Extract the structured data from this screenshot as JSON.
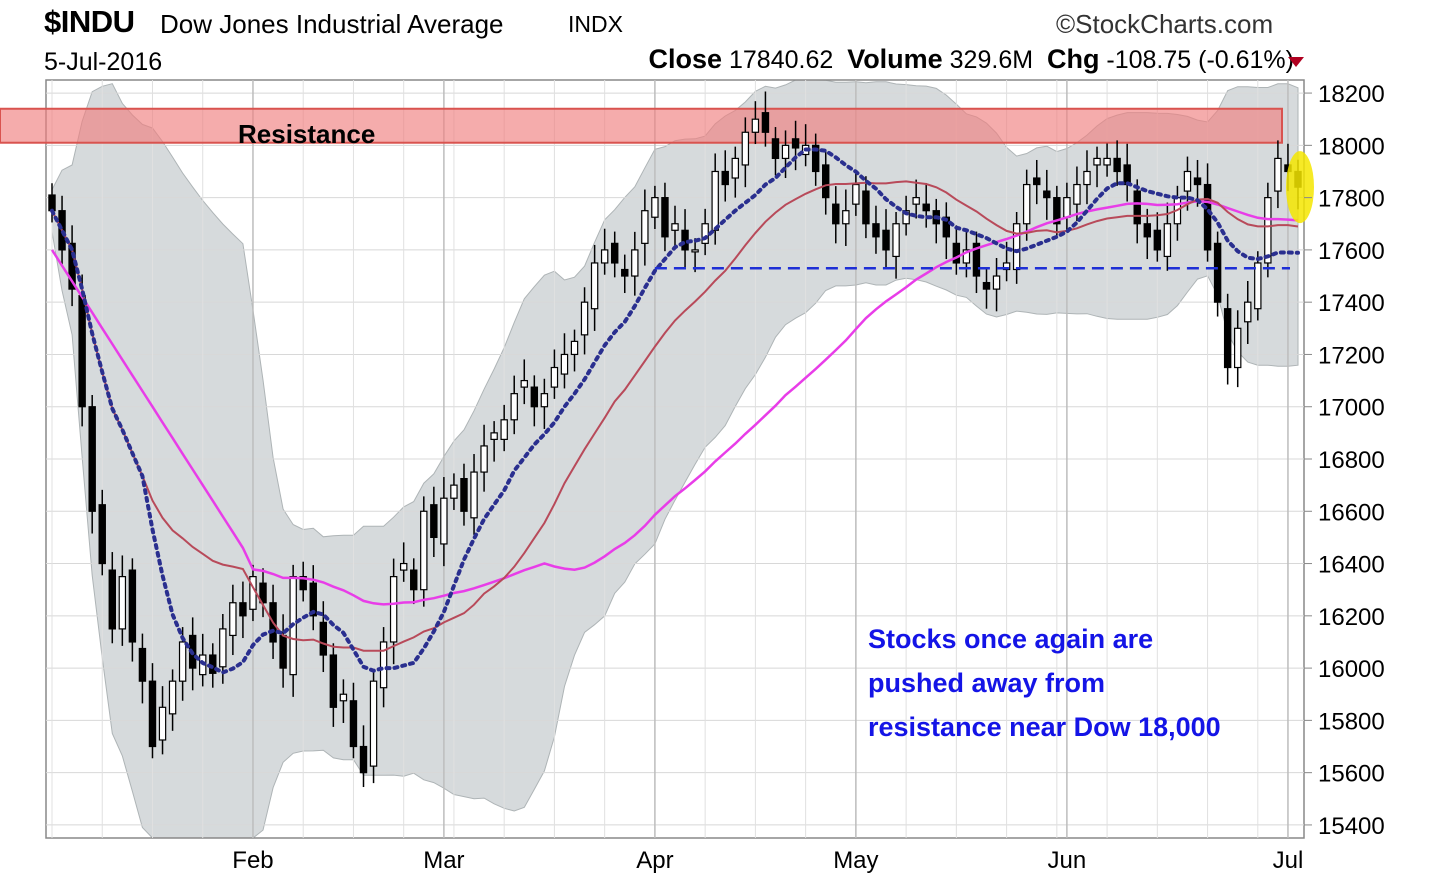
{
  "header": {
    "symbol": "$INDU",
    "name": "Dow Jones Industrial Average",
    "exchange": "INDX",
    "brand": "©StockCharts.com",
    "date": "5-Jul-2016",
    "close_label": "Close",
    "close_value": "17840.62",
    "volume_label": "Volume",
    "volume_value": "329.6M",
    "chg_label": "Chg",
    "chg_value": "-108.75 (-0.61%)"
  },
  "chart_data": {
    "type": "candlestick",
    "title": "$INDU Dow Jones Industrial Average INDX",
    "ylim": [
      15350,
      18250
    ],
    "yticks": [
      15400,
      15600,
      15800,
      16000,
      16200,
      16400,
      16600,
      16800,
      17000,
      17200,
      17400,
      17600,
      17800,
      18000,
      18200
    ],
    "x_start_index": 0,
    "x_end_index": 124,
    "x_month_labels": [
      {
        "label": "Feb",
        "index": 20
      },
      {
        "label": "Mar",
        "index": 39
      },
      {
        "label": "Apr",
        "index": 60
      },
      {
        "label": "May",
        "index": 80
      },
      {
        "label": "Jun",
        "index": 101
      },
      {
        "label": "Jul",
        "index": 123
      }
    ],
    "grid": true,
    "y_axis_side": "right",
    "resistance_band": {
      "low": 18010,
      "high": 18140,
      "label": "Resistance",
      "color": "#f08080"
    },
    "support_line": {
      "value": 17530,
      "from_index": 60,
      "to_index": 124,
      "color": "#1e2fd6"
    },
    "annotation": {
      "lines": [
        "Stocks once again are",
        "pushed away from",
        "resistance near Dow 18,000"
      ],
      "color": "#1414e6",
      "position": "bottom-right"
    },
    "highlight": {
      "index": 124,
      "value": 17840,
      "color": "#f5e600"
    },
    "ohlc_ends": [
      17750,
      17600,
      17450,
      17000,
      16600,
      16400,
      16150,
      16350,
      16100,
      15950,
      15700,
      15850,
      15950,
      16100,
      16000,
      16050,
      15980,
      16150,
      16250,
      16200,
      16350,
      16250,
      16100,
      16000,
      16350,
      16300,
      16200,
      16050,
      15850,
      15900,
      15700,
      15600,
      15950,
      16100,
      16350,
      16400,
      16300,
      16600,
      16500,
      16650,
      16700,
      16600,
      16750,
      16850,
      16900,
      16950,
      17050,
      17100,
      17000,
      17050,
      17150,
      17200,
      17250,
      17400,
      17550,
      17600,
      17550,
      17500,
      17600,
      17750,
      17800,
      17650,
      17700,
      17600,
      17600,
      17700,
      17900,
      17850,
      17950,
      18050,
      18100,
      18050,
      17950,
      18000,
      17990,
      18000,
      17900,
      17800,
      17700,
      17750,
      17850,
      17700,
      17650,
      17600,
      17700,
      17750,
      17800,
      17750,
      17700,
      17650,
      17550,
      17600,
      17500,
      17450,
      17500,
      17550,
      17700,
      17850,
      17850,
      17800,
      17700,
      17800,
      17850,
      17900,
      17950,
      17950,
      17900,
      17850,
      17700,
      17650,
      17600,
      17700,
      17800,
      17900,
      17850,
      17600,
      17400,
      17150,
      17300,
      17400,
      17550,
      17800,
      17950,
      17900,
      17840
    ],
    "series": [
      {
        "name": "",
        "kind": "line",
        "color": "#2a2f8f",
        "dash": "dotted",
        "values": []
      },
      {
        "name": "",
        "kind": "line",
        "color": "#b84a5a",
        "values": []
      },
      {
        "name": "",
        "kind": "line",
        "color": "#e83de8",
        "values": []
      }
    ]
  }
}
